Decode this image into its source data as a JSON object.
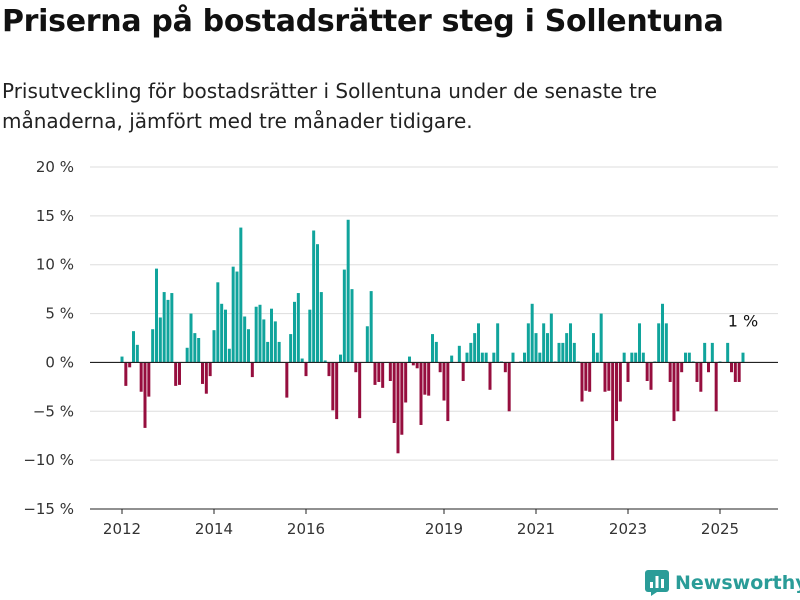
{
  "title": "Priserna på bostadsrätter steg i Sollentuna",
  "subtitle": "Prisutveckling för bostadsrätter i Sollentuna under de senaste tre månaderna, jämfört med tre månader tidigare.",
  "brand": {
    "name": "Newsworthy",
    "icon": "newsworthy-bar-logo-icon",
    "color": "#2a9c98"
  },
  "colors": {
    "positive": "#10a49c",
    "negative": "#960e3e",
    "grid": "#dddddd",
    "axis": "#222222"
  },
  "chart_data": {
    "type": "bar",
    "title": "Priserna på bostadsrätter steg i Sollentuna",
    "subtitle": "Prisutveckling för bostadsrätter i Sollentuna under de senaste tre månaderna, jämfört med tre månader tidigare.",
    "xlabel": "",
    "ylabel": "",
    "unit": "%",
    "start_month": "2012-01",
    "ylim": [
      -15,
      20
    ],
    "yticks": [
      20,
      15,
      10,
      5,
      0,
      -5,
      -10,
      -15
    ],
    "ytick_labels": [
      "20 %",
      "15 %",
      "10 %",
      "5 %",
      "0 %",
      "−5 %",
      "−10 %",
      "−15 %"
    ],
    "xticks": [
      "2012",
      "2014",
      "2016",
      "2019",
      "2021",
      "2023",
      "2025"
    ],
    "grid": true,
    "legend": "none",
    "annotation": {
      "text": "1 %"
    },
    "series": [
      {
        "values": [
          0.6,
          -2.4,
          -0.5,
          3.2,
          1.8,
          -3.0,
          -6.7,
          -3.5,
          3.4,
          9.6,
          4.6,
          7.2,
          6.4,
          7.1,
          -2.4,
          -2.3,
          null,
          1.5,
          5.0,
          3.0,
          2.5,
          -2.2,
          -3.2,
          -1.4,
          3.3,
          8.2,
          6.0,
          5.4,
          1.4,
          9.8,
          9.3,
          13.8,
          4.7,
          3.4,
          -1.5,
          5.7,
          5.9,
          4.4,
          2.1,
          5.5,
          4.2,
          2.1,
          null,
          -3.6,
          2.9,
          6.2,
          7.1,
          0.4,
          -1.4,
          5.4,
          13.5,
          12.1,
          7.2,
          0.2,
          -1.4,
          -4.9,
          -5.8,
          0.8,
          9.5,
          14.6,
          7.5,
          -1.0,
          -5.7,
          null,
          3.7,
          7.3,
          -2.3,
          -2.0,
          -2.6,
          null,
          -1.9,
          -6.2,
          -9.3,
          -7.4,
          -4.1,
          0.6,
          -0.3,
          -0.6,
          -6.4,
          -3.3,
          -3.4,
          2.9,
          2.1,
          -1.0,
          -3.9,
          -6.0,
          0.7,
          null,
          1.7,
          -1.9,
          1.0,
          2.0,
          3.0,
          4.0,
          1.0,
          1.0,
          -2.8,
          1.0,
          4.0,
          0.1,
          -1.0,
          -5.0,
          1.0,
          null,
          0.1,
          1.0,
          4.0,
          6.0,
          3.0,
          1.0,
          4.0,
          3.0,
          5.0,
          0.1,
          2.0,
          2.0,
          3.0,
          4.0,
          2.0,
          0.1,
          -4.0,
          -2.9,
          -3.0,
          3.0,
          1.0,
          5.0,
          -3.0,
          -2.9,
          -10.0,
          -6.0,
          -4.0,
          1.0,
          -2.0,
          1.0,
          1.0,
          4.0,
          1.0,
          -1.9,
          -2.8,
          0.1,
          4.0,
          6.0,
          4.0,
          -2.0,
          -6.0,
          -5.0,
          -1.0,
          1.0,
          1.0,
          0.1,
          -2.0,
          -3.0,
          2.0,
          -1.0,
          2.0,
          -5.0,
          0.1,
          null,
          2.0,
          -1.0,
          -2.0,
          -2.0,
          1.0
        ]
      }
    ]
  }
}
